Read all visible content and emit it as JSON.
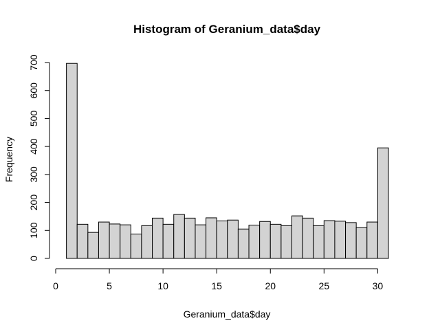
{
  "chart_data": {
    "type": "bar",
    "title": "Histogram of Geranium_data$day",
    "xlabel": "Geranium_data$day",
    "ylabel": "Frequency",
    "xlim": [
      0,
      31
    ],
    "ylim": [
      0,
      700
    ],
    "x_ticks": [
      0,
      5,
      10,
      15,
      20,
      25,
      30
    ],
    "y_ticks": [
      0,
      100,
      200,
      300,
      400,
      500,
      600,
      700
    ],
    "bin_edges": [
      1,
      2,
      3,
      4,
      5,
      6,
      7,
      8,
      9,
      10,
      11,
      12,
      13,
      14,
      15,
      16,
      17,
      18,
      19,
      20,
      21,
      22,
      23,
      24,
      25,
      26,
      27,
      28,
      29,
      30,
      31
    ],
    "values": [
      697,
      122,
      93,
      130,
      123,
      120,
      87,
      117,
      144,
      122,
      157,
      144,
      120,
      145,
      134,
      137,
      105,
      119,
      132,
      122,
      117,
      152,
      144,
      117,
      135,
      133,
      128,
      110,
      130,
      395
    ],
    "bar_fill": "#d3d3d3",
    "bar_stroke": "#000000",
    "grid": false
  }
}
